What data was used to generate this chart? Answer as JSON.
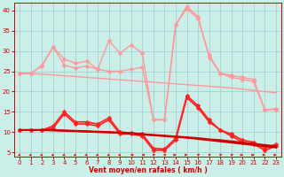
{
  "xlabel": "Vent moyen/en rafales ( km/h )",
  "background_color": "#cceee8",
  "grid_color": "#99cccc",
  "x_ticks": [
    0,
    1,
    2,
    3,
    4,
    5,
    6,
    7,
    8,
    9,
    10,
    11,
    12,
    13,
    14,
    15,
    16,
    17,
    18,
    19,
    20,
    21,
    22,
    23
  ],
  "ylim": [
    4,
    42
  ],
  "yticks": [
    5,
    10,
    15,
    20,
    25,
    30,
    35,
    40
  ],
  "line_pale_smooth": {
    "x": [
      0,
      1,
      2,
      3,
      4,
      5,
      6,
      7,
      8,
      9,
      10,
      11,
      12,
      13,
      14,
      15,
      16,
      17,
      18,
      19,
      20,
      21,
      22,
      23
    ],
    "y": [
      24.5,
      24.4,
      24.3,
      24.1,
      23.9,
      23.7,
      23.5,
      23.3,
      23.1,
      22.9,
      22.7,
      22.5,
      22.3,
      22.1,
      21.9,
      21.7,
      21.5,
      21.3,
      21.1,
      20.9,
      20.6,
      20.3,
      20.0,
      19.7
    ],
    "color": "#ff9999",
    "lw": 1.0,
    "marker": null
  },
  "line_pale_rafales": {
    "x": [
      0,
      1,
      2,
      3,
      4,
      5,
      6,
      7,
      8,
      9,
      10,
      11,
      12,
      13,
      14,
      15,
      16,
      17,
      18,
      19,
      20,
      21,
      22,
      23
    ],
    "y": [
      24.5,
      24.5,
      26.5,
      31.0,
      28.0,
      27.0,
      27.5,
      25.5,
      32.5,
      29.5,
      31.5,
      29.5,
      13.0,
      13.0,
      36.5,
      41.0,
      38.5,
      28.5,
      24.5,
      23.5,
      23.0,
      22.5,
      15.5,
      15.5
    ],
    "color": "#ff9999",
    "lw": 1.0,
    "marker": "D",
    "ms": 2.5
  },
  "line_pale_moyen": {
    "x": [
      0,
      1,
      2,
      3,
      4,
      5,
      6,
      7,
      8,
      9,
      10,
      11,
      12,
      13,
      14,
      15,
      16,
      17,
      18,
      19,
      20,
      21,
      22,
      23
    ],
    "y": [
      24.5,
      24.5,
      26.3,
      31.0,
      26.5,
      25.8,
      26.3,
      25.5,
      25.0,
      25.0,
      25.5,
      26.0,
      13.2,
      13.0,
      36.5,
      40.5,
      38.0,
      29.0,
      24.5,
      24.0,
      23.5,
      23.0,
      15.5,
      15.8
    ],
    "color": "#ff9999",
    "lw": 1.0,
    "marker": "D",
    "ms": 2.5
  },
  "line_red_rafales": {
    "x": [
      0,
      1,
      2,
      3,
      4,
      5,
      6,
      7,
      8,
      9,
      10,
      11,
      12,
      13,
      14,
      15,
      16,
      17,
      18,
      19,
      20,
      21,
      22,
      23
    ],
    "y": [
      10.5,
      10.5,
      10.5,
      11.5,
      15.0,
      12.5,
      12.5,
      12.0,
      13.5,
      10.0,
      9.8,
      9.5,
      6.0,
      5.8,
      8.5,
      19.0,
      16.5,
      13.0,
      10.5,
      9.5,
      8.0,
      7.5,
      6.0,
      7.0
    ],
    "color": "#ff2222",
    "lw": 1.2,
    "marker": "D",
    "ms": 2.5
  },
  "line_red_moyen": {
    "x": [
      0,
      1,
      2,
      3,
      4,
      5,
      6,
      7,
      8,
      9,
      10,
      11,
      12,
      13,
      14,
      15,
      16,
      17,
      18,
      19,
      20,
      21,
      22,
      23
    ],
    "y": [
      10.5,
      10.5,
      10.5,
      11.0,
      14.5,
      12.0,
      12.0,
      11.5,
      13.0,
      9.5,
      9.5,
      9.0,
      5.5,
      5.5,
      8.0,
      18.5,
      16.0,
      12.5,
      10.5,
      9.0,
      7.5,
      7.0,
      5.5,
      6.5
    ],
    "color": "#ff2222",
    "lw": 1.2,
    "marker": "D",
    "ms": 2.5
  },
  "line_dark_smooth1": {
    "x": [
      0,
      1,
      2,
      3,
      4,
      5,
      6,
      7,
      8,
      9,
      10,
      11,
      12,
      13,
      14,
      15,
      16,
      17,
      18,
      19,
      20,
      21,
      22,
      23
    ],
    "y": [
      10.5,
      10.5,
      10.5,
      10.5,
      10.4,
      10.3,
      10.2,
      10.1,
      10.0,
      9.9,
      9.7,
      9.5,
      9.3,
      9.1,
      8.9,
      8.7,
      8.5,
      8.2,
      8.0,
      7.7,
      7.4,
      7.1,
      6.8,
      6.5
    ],
    "color": "#cc0000",
    "lw": 1.5,
    "marker": null
  },
  "line_dark_smooth2": {
    "x": [
      0,
      1,
      2,
      3,
      4,
      5,
      6,
      7,
      8,
      9,
      10,
      11,
      12,
      13,
      14,
      15,
      16,
      17,
      18,
      19,
      20,
      21,
      22,
      23
    ],
    "y": [
      10.5,
      10.5,
      10.5,
      10.4,
      10.3,
      10.2,
      10.1,
      10.0,
      9.9,
      9.8,
      9.6,
      9.4,
      9.2,
      9.0,
      8.8,
      8.6,
      8.3,
      8.0,
      7.7,
      7.4,
      7.1,
      6.8,
      6.5,
      6.2
    ],
    "color": "#cc0000",
    "lw": 1.5,
    "marker": null
  },
  "arrows": {
    "x": [
      0,
      1,
      2,
      3,
      4,
      5,
      6,
      7,
      8,
      9,
      10,
      11,
      12,
      13,
      14,
      15,
      16,
      17,
      18,
      19,
      20,
      21,
      22,
      23
    ],
    "angles_deg": [
      225,
      225,
      225,
      225,
      225,
      225,
      225,
      225,
      225,
      225,
      270,
      270,
      45,
      45,
      90,
      90,
      45,
      45,
      45,
      45,
      90,
      90,
      90,
      90
    ]
  }
}
